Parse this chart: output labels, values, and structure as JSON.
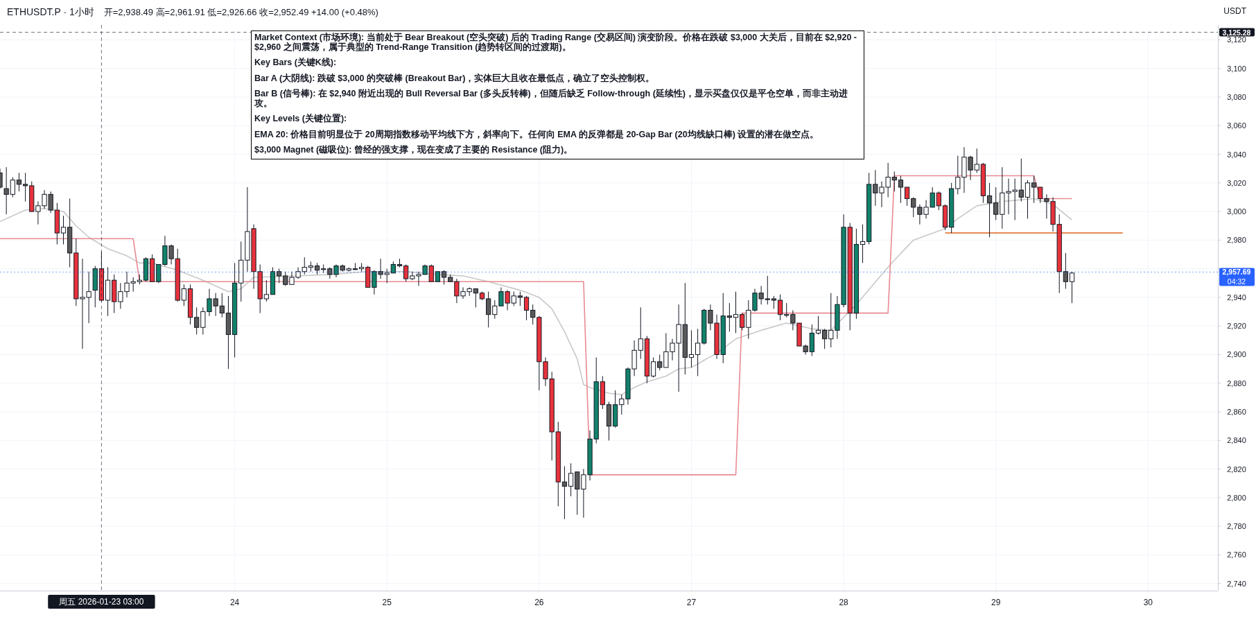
{
  "chart_data": {
    "type": "candlestick",
    "title": "ETHUSDT.P · 1小时",
    "subtitle": "开=2,938.49 高=2,961.91 低=2,926.66 收=2,952.49 +14.00 (+0.48%)",
    "ylabel": "USDT",
    "x": [
      "2026-01-22T11:00",
      "2026-01-22T12:00",
      "2026-01-22T13:00",
      "2026-01-22T14:00",
      "2026-01-22T15:00",
      "2026-01-22T16:00",
      "2026-01-22T17:00",
      "2026-01-22T18:00",
      "2026-01-22T19:00",
      "2026-01-22T20:00",
      "2026-01-22T21:00",
      "2026-01-22T22:00",
      "2026-01-22T23:00",
      "2026-01-23T00:00",
      "2026-01-23T01:00",
      "2026-01-23T02:00",
      "2026-01-23T03:00",
      "2026-01-23T04:00",
      "2026-01-23T05:00",
      "2026-01-23T06:00",
      "2026-01-23T07:00",
      "2026-01-23T08:00",
      "2026-01-23T09:00",
      "2026-01-23T10:00",
      "2026-01-23T11:00",
      "2026-01-23T12:00",
      "2026-01-23T13:00",
      "2026-01-23T14:00",
      "2026-01-23T15:00",
      "2026-01-23T16:00",
      "2026-01-23T17:00",
      "2026-01-23T18:00",
      "2026-01-23T19:00",
      "2026-01-23T20:00",
      "2026-01-23T21:00",
      "2026-01-23T22:00",
      "2026-01-23T23:00",
      "2026-01-24T00:00",
      "2026-01-24T01:00",
      "2026-01-24T02:00",
      "2026-01-24T03:00",
      "2026-01-24T04:00",
      "2026-01-24T05:00",
      "2026-01-24T06:00",
      "2026-01-24T07:00",
      "2026-01-24T08:00",
      "2026-01-24T09:00",
      "2026-01-24T10:00",
      "2026-01-24T11:00",
      "2026-01-24T12:00",
      "2026-01-24T13:00",
      "2026-01-24T14:00",
      "2026-01-24T15:00",
      "2026-01-24T16:00",
      "2026-01-24T17:00",
      "2026-01-24T18:00",
      "2026-01-24T19:00",
      "2026-01-24T20:00",
      "2026-01-24T21:00",
      "2026-01-24T22:00",
      "2026-01-24T23:00",
      "2026-01-25T00:00",
      "2026-01-25T01:00",
      "2026-01-25T02:00",
      "2026-01-25T03:00",
      "2026-01-25T04:00",
      "2026-01-25T05:00",
      "2026-01-25T06:00",
      "2026-01-25T07:00",
      "2026-01-25T08:00",
      "2026-01-25T09:00",
      "2026-01-25T10:00",
      "2026-01-25T11:00",
      "2026-01-25T12:00",
      "2026-01-25T13:00",
      "2026-01-25T14:00",
      "2026-01-25T15:00",
      "2026-01-25T16:00",
      "2026-01-25T17:00",
      "2026-01-25T18:00",
      "2026-01-25T19:00",
      "2026-01-25T20:00",
      "2026-01-25T21:00",
      "2026-01-25T22:00",
      "2026-01-25T23:00",
      "2026-01-26T00:00",
      "2026-01-26T01:00",
      "2026-01-26T02:00",
      "2026-01-26T03:00",
      "2026-01-26T04:00",
      "2026-01-26T05:00",
      "2026-01-26T06:00",
      "2026-01-26T07:00",
      "2026-01-26T08:00",
      "2026-01-26T09:00",
      "2026-01-26T10:00",
      "2026-01-26T11:00",
      "2026-01-26T12:00",
      "2026-01-26T13:00",
      "2026-01-26T14:00",
      "2026-01-26T15:00",
      "2026-01-26T16:00",
      "2026-01-26T17:00",
      "2026-01-26T18:00",
      "2026-01-26T19:00",
      "2026-01-26T20:00",
      "2026-01-26T21:00",
      "2026-01-26T22:00",
      "2026-01-26T23:00",
      "2026-01-27T00:00",
      "2026-01-27T01:00",
      "2026-01-27T02:00",
      "2026-01-27T03:00",
      "2026-01-27T04:00",
      "2026-01-27T05:00",
      "2026-01-27T06:00",
      "2026-01-27T07:00",
      "2026-01-27T08:00",
      "2026-01-27T09:00",
      "2026-01-27T10:00",
      "2026-01-27T11:00",
      "2026-01-27T12:00",
      "2026-01-27T13:00",
      "2026-01-27T14:00",
      "2026-01-27T15:00",
      "2026-01-27T16:00",
      "2026-01-27T17:00",
      "2026-01-27T18:00",
      "2026-01-27T19:00",
      "2026-01-27T20:00",
      "2026-01-27T21:00",
      "2026-01-27T22:00",
      "2026-01-27T23:00",
      "2026-01-28T00:00",
      "2026-01-28T01:00",
      "2026-01-28T02:00",
      "2026-01-28T03:00",
      "2026-01-28T04:00",
      "2026-01-28T05:00",
      "2026-01-28T06:00",
      "2026-01-28T07:00",
      "2026-01-28T08:00",
      "2026-01-28T09:00",
      "2026-01-28T10:00",
      "2026-01-28T11:00",
      "2026-01-28T12:00",
      "2026-01-28T13:00",
      "2026-01-28T14:00",
      "2026-01-28T15:00",
      "2026-01-28T16:00",
      "2026-01-28T17:00",
      "2026-01-28T18:00",
      "2026-01-28T19:00",
      "2026-01-28T20:00",
      "2026-01-28T21:00",
      "2026-01-28T22:00",
      "2026-01-28T23:00",
      "2026-01-29T00:00",
      "2026-01-29T01:00",
      "2026-01-29T02:00",
      "2026-01-29T03:00",
      "2026-01-29T04:00",
      "2026-01-29T05:00",
      "2026-01-29T06:00",
      "2026-01-29T07:00",
      "2026-01-29T08:00",
      "2026-01-29T09:00",
      "2026-01-29T10:00",
      "2026-01-29T11:00",
      "2026-01-29T12:00"
    ],
    "ohlc": [
      [
        3027,
        3030,
        3016,
        3017
      ],
      [
        3016,
        3031,
        2998,
        3012
      ],
      [
        3012,
        3024,
        3010,
        3022
      ],
      [
        3022,
        3027,
        3014,
        3019
      ],
      [
        3019,
        3027,
        3007,
        3018
      ],
      [
        3018,
        3021,
        3000,
        3000
      ],
      [
        3000,
        3007,
        2991,
        3004
      ],
      [
        3004,
        3015,
        3002,
        3012
      ],
      [
        3012,
        3014,
        2999,
        3001
      ],
      [
        3001,
        3006,
        2977,
        2985
      ],
      [
        2985,
        2997,
        2977,
        2989
      ],
      [
        2989,
        3009,
        2961,
        2971
      ],
      [
        2971,
        2981,
        2934,
        2939
      ],
      [
        2939,
        2967,
        2904,
        2940
      ],
      [
        2940,
        2958,
        2922,
        2944
      ],
      [
        2945,
        2962,
        2933,
        2960
      ],
      [
        2960,
        2972,
        2937,
        2938
      ],
      [
        2938,
        2961,
        2927,
        2952
      ],
      [
        2952,
        2956,
        2929,
        2937
      ],
      [
        2937,
        2950,
        2932,
        2944
      ],
      [
        2944,
        2958,
        2940,
        2950
      ],
      [
        2950,
        2954,
        2944,
        2951
      ],
      [
        2951,
        2956,
        2949,
        2952
      ],
      [
        2952,
        2968,
        2951,
        2967
      ],
      [
        2967,
        2970,
        2951,
        2951
      ],
      [
        2951,
        2963,
        2950,
        2963
      ],
      [
        2963,
        2983,
        2962,
        2976
      ],
      [
        2976,
        2977,
        2963,
        2967
      ],
      [
        2967,
        2974,
        2937,
        2938
      ],
      [
        2938,
        2949,
        2934,
        2946
      ],
      [
        2946,
        2949,
        2921,
        2926
      ],
      [
        2926,
        2933,
        2914,
        2919
      ],
      [
        2919,
        2933,
        2914,
        2930
      ],
      [
        2930,
        2946,
        2927,
        2939
      ],
      [
        2939,
        2943,
        2927,
        2934
      ],
      [
        2934,
        2943,
        2926,
        2929
      ],
      [
        2929,
        2941,
        2890,
        2914
      ],
      [
        2914,
        2964,
        2898,
        2950
      ],
      [
        2950,
        2979,
        2937,
        2966
      ],
      [
        2966,
        3017,
        2958,
        2986
      ],
      [
        2988,
        2991,
        2946,
        2958
      ],
      [
        2958,
        2963,
        2929,
        2939
      ],
      [
        2939,
        2952,
        2937,
        2942
      ],
      [
        2942,
        2961,
        2942,
        2958
      ],
      [
        2958,
        2960,
        2950,
        2955
      ],
      [
        2955,
        2958,
        2948,
        2949
      ],
      [
        2949,
        2958,
        2949,
        2954
      ],
      [
        2954,
        2961,
        2953,
        2958
      ],
      [
        2958,
        2968,
        2956,
        2961
      ],
      [
        2961,
        2965,
        2958,
        2962
      ],
      [
        2962,
        2964,
        2956,
        2959
      ],
      [
        2960,
        2963,
        2957,
        2960
      ],
      [
        2960,
        2961,
        2953,
        2956
      ],
      [
        2956,
        2963,
        2954,
        2962
      ],
      [
        2962,
        2963,
        2958,
        2959
      ],
      [
        2959,
        2961,
        2958,
        2960
      ],
      [
        2960,
        2964,
        2959,
        2960
      ],
      [
        2960,
        2964,
        2958,
        2961
      ],
      [
        2961,
        2962,
        2947,
        2947
      ],
      [
        2947,
        2959,
        2942,
        2958
      ],
      [
        2958,
        2967,
        2953,
        2956
      ],
      [
        2956,
        2960,
        2950,
        2957
      ],
      [
        2957,
        2965,
        2957,
        2963
      ],
      [
        2963,
        2967,
        2961,
        2962
      ],
      [
        2962,
        2963,
        2951,
        2953
      ],
      [
        2953,
        2958,
        2952,
        2955
      ],
      [
        2955,
        2958,
        2948,
        2956
      ],
      [
        2956,
        2963,
        2956,
        2962
      ],
      [
        2962,
        2963,
        2951,
        2951
      ],
      [
        2951,
        2958,
        2951,
        2958
      ],
      [
        2958,
        2959,
        2949,
        2954
      ],
      [
        2954,
        2956,
        2951,
        2951
      ],
      [
        2951,
        2953,
        2936,
        2941
      ],
      [
        2941,
        2947,
        2939,
        2944
      ],
      [
        2944,
        2947,
        2941,
        2946
      ],
      [
        2946,
        2946,
        2933,
        2943
      ],
      [
        2943,
        2944,
        2938,
        2939
      ],
      [
        2939,
        2944,
        2919,
        2928
      ],
      [
        2928,
        2938,
        2925,
        2934
      ],
      [
        2934,
        2947,
        2934,
        2944
      ],
      [
        2944,
        2945,
        2931,
        2936
      ],
      [
        2936,
        2944,
        2934,
        2941
      ],
      [
        2941,
        2944,
        2934,
        2940
      ],
      [
        2940,
        2941,
        2924,
        2931
      ],
      [
        2931,
        2935,
        2921,
        2926
      ],
      [
        2926,
        2927,
        2875,
        2895
      ],
      [
        2895,
        2898,
        2878,
        2883
      ],
      [
        2883,
        2888,
        2826,
        2846
      ],
      [
        2846,
        2853,
        2794,
        2811
      ],
      [
        2811,
        2822,
        2785,
        2808
      ],
      [
        2808,
        2824,
        2801,
        2817
      ],
      [
        2818,
        2818,
        2788,
        2806
      ],
      [
        2806,
        2820,
        2786,
        2816
      ],
      [
        2816,
        2847,
        2812,
        2841
      ],
      [
        2841,
        2898,
        2838,
        2881
      ],
      [
        2881,
        2885,
        2862,
        2865
      ],
      [
        2865,
        2867,
        2840,
        2850
      ],
      [
        2850,
        2875,
        2849,
        2865
      ],
      [
        2865,
        2872,
        2858,
        2869
      ],
      [
        2869,
        2891,
        2865,
        2890
      ],
      [
        2890,
        2910,
        2885,
        2903
      ],
      [
        2903,
        2933,
        2897,
        2911
      ],
      [
        2911,
        2913,
        2880,
        2885
      ],
      [
        2885,
        2898,
        2884,
        2895
      ],
      [
        2895,
        2900,
        2889,
        2891
      ],
      [
        2891,
        2915,
        2891,
        2902
      ],
      [
        2902,
        2911,
        2896,
        2908
      ],
      [
        2908,
        2935,
        2874,
        2921
      ],
      [
        2921,
        2950,
        2886,
        2898
      ],
      [
        2898,
        2917,
        2891,
        2900
      ],
      [
        2900,
        2918,
        2885,
        2908
      ],
      [
        2908,
        2932,
        2907,
        2931
      ],
      [
        2931,
        2935,
        2917,
        2922
      ],
      [
        2922,
        2928,
        2897,
        2900
      ],
      [
        2900,
        2943,
        2894,
        2927
      ],
      [
        2927,
        2936,
        2916,
        2926
      ],
      [
        2926,
        2944,
        2915,
        2928
      ],
      [
        2928,
        2929,
        2917,
        2919
      ],
      [
        2919,
        2938,
        2911,
        2931
      ],
      [
        2931,
        2946,
        2930,
        2943
      ],
      [
        2943,
        2948,
        2935,
        2939
      ],
      [
        2939,
        2955,
        2935,
        2939
      ],
      [
        2939,
        2941,
        2932,
        2938
      ],
      [
        2938,
        2942,
        2924,
        2928
      ],
      [
        2928,
        2936,
        2926,
        2928
      ],
      [
        2928,
        2931,
        2917,
        2922
      ],
      [
        2922,
        2922,
        2906,
        2906
      ],
      [
        2906,
        2907,
        2900,
        2902
      ],
      [
        2902,
        2921,
        2899,
        2915
      ],
      [
        2915,
        2927,
        2914,
        2917
      ],
      [
        2917,
        2918,
        2904,
        2911
      ],
      [
        2911,
        2943,
        2905,
        2917
      ],
      [
        2917,
        2941,
        2911,
        2935
      ],
      [
        2935,
        2998,
        2933,
        2989
      ],
      [
        2989,
        2992,
        2917,
        2929
      ],
      [
        2929,
        2988,
        2925,
        2977
      ],
      [
        2977,
        2991,
        2964,
        2979
      ],
      [
        2979,
        3027,
        2977,
        3019
      ],
      [
        3019,
        3029,
        3004,
        3013
      ],
      [
        3013,
        3021,
        3003,
        3017
      ],
      [
        3017,
        3034,
        3010,
        3024
      ],
      [
        3024,
        3028,
        3014,
        3022
      ],
      [
        3022,
        3025,
        3006,
        3017
      ],
      [
        3017,
        3017,
        3004,
        3009
      ],
      [
        3009,
        3010,
        2996,
        3003
      ],
      [
        3003,
        3005,
        2991,
        2998
      ],
      [
        2998,
        3008,
        2995,
        3003
      ],
      [
        3003,
        3017,
        3003,
        3013
      ],
      [
        3013,
        3014,
        3001,
        3004
      ],
      [
        3004,
        3005,
        2987,
        2989
      ],
      [
        2989,
        3020,
        2985,
        3016
      ],
      [
        3016,
        3039,
        3012,
        3024
      ],
      [
        3024,
        3045,
        3013,
        3038
      ],
      [
        3038,
        3039,
        3022,
        3029
      ],
      [
        3029,
        3044,
        3027,
        3033
      ],
      [
        3033,
        3034,
        3006,
        3011
      ],
      [
        3011,
        3020,
        2982,
        3006
      ],
      [
        3006,
        3017,
        2994,
        2998
      ],
      [
        2998,
        3031,
        2988,
        3013
      ],
      [
        3013,
        3023,
        2998,
        3014
      ],
      [
        3014,
        3023,
        2994,
        3015
      ],
      [
        3015,
        3037,
        3007,
        3010
      ],
      [
        3010,
        3022,
        2995,
        3020
      ],
      [
        3020,
        3025,
        3006,
        3017
      ],
      [
        3017,
        3017,
        3006,
        3009
      ],
      [
        3009,
        3012,
        2995,
        3007
      ],
      [
        3007,
        3010,
        2986,
        2991
      ],
      [
        2991,
        2998,
        2943,
        2958
      ],
      [
        2958,
        2971,
        2946,
        2951
      ],
      [
        2951,
        2958,
        2936,
        2957
      ]
    ],
    "colors": [
      "#5a5a5a",
      "#5a5a5a",
      "#ffffff",
      "#5a5a5a",
      "#5a5a5a",
      "#e8323c",
      "#ffffff",
      "#ffffff",
      "#5a5a5a",
      "#e8323c",
      "#ffffff",
      "#5a5a5a",
      "#e8323c",
      "#ffffff",
      "#ffffff",
      "#12826b",
      "#e8323c",
      "#ffffff",
      "#e8323c",
      "#ffffff",
      "#ffffff",
      "#ffffff",
      "#ffffff",
      "#12826b",
      "#e8323c",
      "#12826b",
      "#12826b",
      "#5a5a5a",
      "#e8323c",
      "#ffffff",
      "#e8323c",
      "#5a5a5a",
      "#ffffff",
      "#12826b",
      "#5a5a5a",
      "#5a5a5a",
      "#5a5a5a",
      "#12826b",
      "#ffffff",
      "#ffffff",
      "#e8323c",
      "#e8323c",
      "#ffffff",
      "#12826b",
      "#5a5a5a",
      "#5a5a5a",
      "#ffffff",
      "#ffffff",
      "#ffffff",
      "#ffffff",
      "#5a5a5a",
      "#ffffff",
      "#5a5a5a",
      "#12826b",
      "#5a5a5a",
      "#ffffff",
      "#5a5a5a",
      "#ffffff",
      "#e8323c",
      "#12826b",
      "#5a5a5a",
      "#ffffff",
      "#12826b",
      "#5a5a5a",
      "#e8323c",
      "#ffffff",
      "#ffffff",
      "#12826b",
      "#e8323c",
      "#12826b",
      "#5a5a5a",
      "#5a5a5a",
      "#e8323c",
      "#ffffff",
      "#ffffff",
      "#5a5a5a",
      "#e8323c",
      "#5a5a5a",
      "#ffffff",
      "#12826b",
      "#e8323c",
      "#ffffff",
      "#5a5a5a",
      "#e8323c",
      "#5a5a5a",
      "#e8323c",
      "#e8323c",
      "#e8323c",
      "#e8323c",
      "#5a5a5a",
      "#ffffff",
      "#5a5a5a",
      "#ffffff",
      "#12826b",
      "#12826b",
      "#e8323c",
      "#5a5a5a",
      "#12826b",
      "#ffffff",
      "#12826b",
      "#ffffff",
      "#ffffff",
      "#e8323c",
      "#ffffff",
      "#5a5a5a",
      "#ffffff",
      "#ffffff",
      "#ffffff",
      "#5a5a5a",
      "#ffffff",
      "#ffffff",
      "#12826b",
      "#5a5a5a",
      "#e8323c",
      "#12826b",
      "#5a5a5a",
      "#ffffff",
      "#e8323c",
      "#ffffff",
      "#12826b",
      "#5a5a5a",
      "#5a5a5a",
      "#5a5a5a",
      "#e8323c",
      "#ffffff",
      "#5a5a5a",
      "#e8323c",
      "#5a5a5a",
      "#12826b",
      "#ffffff",
      "#5a5a5a",
      "#ffffff",
      "#12826b",
      "#12826b",
      "#e8323c",
      "#12826b",
      "#ffffff",
      "#12826b",
      "#5a5a5a",
      "#ffffff",
      "#ffffff",
      "#5a5a5a",
      "#5a5a5a",
      "#e8323c",
      "#5a5a5a",
      "#5a5a5a",
      "#ffffff",
      "#12826b",
      "#e8323c",
      "#e8323c",
      "#12826b",
      "#ffffff",
      "#ffffff",
      "#5a5a5a",
      "#ffffff",
      "#e8323c",
      "#5a5a5a",
      "#5a5a5a",
      "#ffffff",
      "#ffffff",
      "#ffffff",
      "#5a5a5a",
      "#ffffff",
      "#5a5a5a",
      "#e8323c",
      "#5a5a5a",
      "#e8323c",
      "#e8323c",
      "#5a5a5a",
      "#ffffff"
    ],
    "series": [
      {
        "type": "line",
        "color": "#c8c8c8",
        "x": [
          "2026-01-22T11:00",
          "2026-01-22T15:00",
          "2026-01-22T18:00",
          "2026-01-22T21:00",
          "2026-01-22T23:00",
          "2026-01-23T01:00",
          "2026-01-23T04:00",
          "2026-01-23T07:00",
          "2026-01-23T09:00",
          "2026-01-23T11:00",
          "2026-01-23T15:00",
          "2026-01-23T19:00",
          "2026-01-23T23:00",
          "2026-01-24T01:00",
          "2026-01-24T03:00",
          "2026-01-24T10:00",
          "2026-01-24T15:00",
          "2026-01-24T21:00",
          "2026-01-25T03:00",
          "2026-01-25T08:00",
          "2026-01-25T12:00",
          "2026-01-25T16:00",
          "2026-01-25T21:00",
          "2026-01-26T00:00",
          "2026-01-26T02:00",
          "2026-01-26T04:00",
          "2026-01-26T06:00",
          "2026-01-26T07:00",
          "2026-01-26T08:00",
          "2026-01-26T11:00",
          "2026-01-26T13:00",
          "2026-01-26T15:00",
          "2026-01-26T17:00",
          "2026-01-26T20:00",
          "2026-01-26T22:00",
          "2026-01-27T00:00",
          "2026-01-27T04:00",
          "2026-01-27T07:00",
          "2026-01-27T11:00",
          "2026-01-27T15:00",
          "2026-01-27T19:00",
          "2026-01-27T22:00",
          "2026-01-28T02:00",
          "2026-01-28T06:00",
          "2026-01-28T08:00",
          "2026-01-28T11:00",
          "2026-01-28T16:00",
          "2026-01-28T18:00",
          "2026-01-28T21:00",
          "2026-01-29T01:00",
          "2026-01-29T06:00",
          "2026-01-29T09:00",
          "2026-01-29T12:00"
        ],
        "values": [
          2993,
          3001,
          3002,
          3000,
          2990,
          2982,
          2974,
          2969,
          2964,
          2964,
          2959,
          2952,
          2944,
          2946,
          2954,
          2955,
          2956,
          2958,
          2958,
          2956,
          2955,
          2951,
          2945,
          2940,
          2932,
          2916,
          2897,
          2879,
          2877,
          2873,
          2872,
          2877,
          2881,
          2885,
          2890,
          2891,
          2901,
          2911,
          2917,
          2922,
          2918,
          2917,
          2935,
          2956,
          2966,
          2980,
          2988,
          2995,
          3004,
          3007,
          3009,
          3005,
          2994
        ]
      },
      {
        "type": "line",
        "color": "#e88a92",
        "x": [
          "2026-01-22T11:00",
          "2026-01-23T08:00",
          "2026-01-23T09:00",
          "2026-01-26T07:00",
          "2026-01-26T08:00",
          "2026-01-27T07:00",
          "2026-01-27T08:00",
          "2026-01-28T07:00",
          "2026-01-28T08:00",
          "2026-01-29T06:00",
          "2026-01-29T07:00",
          "2026-01-29T12:00"
        ],
        "values": [
          2981,
          2981,
          2951,
          2951,
          2816,
          2816,
          2929,
          2929,
          3025,
          3025,
          3009,
          3009
        ]
      },
      {
        "type": "line",
        "color": "#e0651a",
        "x": [
          "2026-01-28T16:00",
          "2026-01-29T20:00"
        ],
        "values": [
          2985,
          2985
        ]
      }
    ],
    "xlim": [
      "2026-01-22T11:00",
      "2026-01-30T11:00"
    ],
    "xticks": [
      {
        "value": "2026-01-24",
        "label": "24"
      },
      {
        "value": "2026-01-25",
        "label": "25"
      },
      {
        "value": "2026-01-26",
        "label": "26"
      },
      {
        "value": "2026-01-27",
        "label": "27"
      },
      {
        "value": "2026-01-28",
        "label": "28"
      },
      {
        "value": "2026-01-29",
        "label": "29"
      },
      {
        "value": "2026-01-30",
        "label": "30"
      }
    ],
    "ylim": [
      2735,
      3127
    ],
    "yticks": [
      {
        "value": 2740,
        "label": "2,740"
      },
      {
        "value": 2760,
        "label": "2,760"
      },
      {
        "value": 2780,
        "label": "2,780"
      },
      {
        "value": 2800,
        "label": "2,800"
      },
      {
        "value": 2820,
        "label": "2,820"
      },
      {
        "value": 2840,
        "label": "2,840"
      },
      {
        "value": 2860,
        "label": "2,860"
      },
      {
        "value": 2880,
        "label": "2,880"
      },
      {
        "value": 2900,
        "label": "2,900"
      },
      {
        "value": 2920,
        "label": "2,920"
      },
      {
        "value": 2940,
        "label": "2,940"
      },
      {
        "value": 2960,
        "label": null
      },
      {
        "value": 2980,
        "label": "2,980"
      },
      {
        "value": 3000,
        "label": "3,000"
      },
      {
        "value": 3020,
        "label": "3,020"
      },
      {
        "value": 3040,
        "label": "3,040"
      },
      {
        "value": 3060,
        "label": "3,060"
      },
      {
        "value": 3080,
        "label": "3,080"
      },
      {
        "value": 3100,
        "label": "3,100"
      },
      {
        "value": 3120,
        "label": "3,120"
      }
    ],
    "grid": true,
    "ref_lines": [
      {
        "axis": "x",
        "value": "2026-01-23T03:00",
        "label": "周五 2026-01-23 03:00",
        "color": "#131722",
        "line_style": "dashed"
      },
      {
        "axis": "y",
        "value": 3125.28,
        "label": "3,125.28",
        "color": "#131722",
        "line_style": "dashed"
      },
      {
        "axis": "y",
        "value": 2957.69,
        "label": "2,957.69\n04:32",
        "color": "#2962ff",
        "line_style": "dotted"
      }
    ],
    "annotations": [
      "Market Context (市场环境): 当前处于 Bear Breakout (空头突破) 后的 Trading Range (交易区间) 演变阶段。价格在跌破 $3,000 大关后，目前在 $2,920 - $2,960 之间震荡，属于典型的 Trend-Range Transition (趋势转区间的过渡期)。",
      "Key Bars (关键K线):",
      "Bar A (大阴线): 跌破 $3,000 的突破棒 (Breakout Bar)，实体巨大且收在最低点，确立了空头控制权。",
      "Bar B (信号棒): 在 $2,940 附近出现的 Bull Reversal Bar (多头反转棒)，但随后缺乏 Follow-through (延续性)，显示买盘仅仅是平仓空单，而非主动进攻。",
      "Key Levels (关键位置):",
      "EMA 20: 价格目前明显位于 20周期指数移动平均线下方，斜率向下。任何向 EMA 的反弹都是 20-Gap Bar (20均线缺口棒) 设置的潜在做空点。",
      "$3,000 Magnet (磁吸位): 曾经的强支撑，现在变成了主要的 Resistance (阻力)。"
    ]
  }
}
